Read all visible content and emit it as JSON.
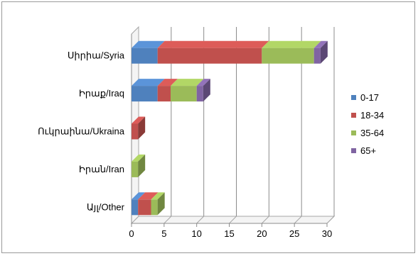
{
  "chart_data": {
    "type": "bar",
    "orientation": "horizontal",
    "style": "stacked-3d",
    "categories": [
      "Սիրիա/Syria",
      "Իրաք/Iraq",
      "Ուկրաինա/Ukraina",
      "Իրան/Iran",
      "Այլ/Other"
    ],
    "series": [
      {
        "name": "0-17",
        "color": "#4f81bd",
        "values": [
          4,
          4,
          0,
          0,
          1
        ]
      },
      {
        "name": "18-34",
        "color": "#c0504d",
        "values": [
          16,
          2,
          1,
          0,
          2
        ]
      },
      {
        "name": "35-64",
        "color": "#9bbb59",
        "values": [
          8,
          4,
          0,
          1,
          1
        ]
      },
      {
        "name": "65+",
        "color": "#8064a2",
        "values": [
          1,
          1,
          0,
          0,
          0
        ]
      }
    ],
    "xlim": [
      0,
      30
    ],
    "xticks": [
      "0",
      "5",
      "10",
      "15",
      "20",
      "25",
      "30"
    ],
    "grid": true,
    "legend_position": "right"
  }
}
